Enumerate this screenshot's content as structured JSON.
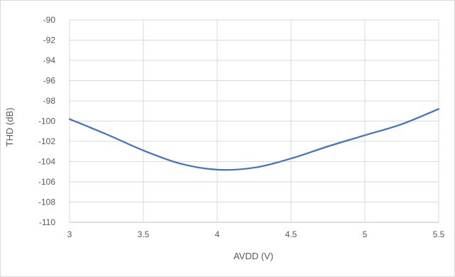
{
  "chart_data": {
    "type": "line",
    "title": "",
    "xlabel": "AVDD (V)",
    "ylabel": "THD (dB)",
    "xlim": [
      3,
      5.5
    ],
    "ylim": [
      -110,
      -90
    ],
    "xticks": [
      3,
      3.5,
      4,
      4.5,
      5,
      5.5
    ],
    "xtick_labels": [
      "3",
      "3.5",
      "4",
      "4.5",
      "5",
      "5.5"
    ],
    "yticks": [
      -90,
      -92,
      -94,
      -96,
      -98,
      -100,
      -102,
      -104,
      -106,
      -108,
      -110
    ],
    "ytick_labels": [
      "-90",
      "-92",
      "-94",
      "-96",
      "-98",
      "-100",
      "-102",
      "-104",
      "-106",
      "-108",
      "-110"
    ],
    "grid": true,
    "legend": "none",
    "colors": {
      "line": "#4472c4",
      "grid": "#d9d9d9",
      "axis": "#bfbfbf",
      "text": "#595959"
    },
    "series": [
      {
        "x": [
          3.0,
          3.25,
          3.5,
          3.75,
          4.0,
          4.25,
          4.5,
          4.75,
          5.0,
          5.25,
          5.5
        ],
        "y": [
          -99.8,
          -101.3,
          -102.9,
          -104.2,
          -104.8,
          -104.6,
          -103.7,
          -102.5,
          -101.4,
          -100.3,
          -98.8
        ]
      }
    ]
  }
}
